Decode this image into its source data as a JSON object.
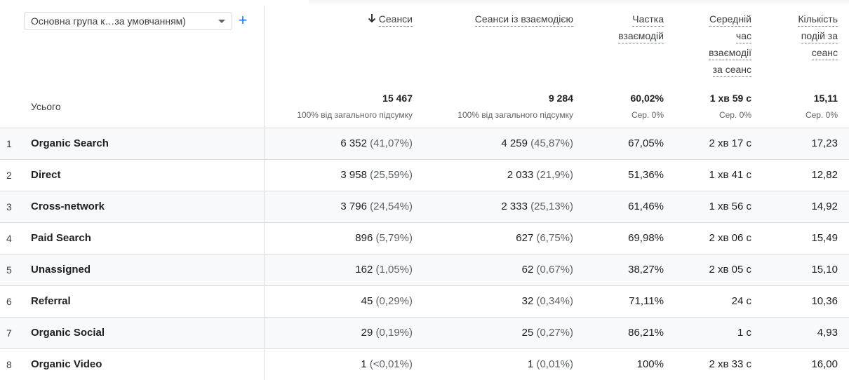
{
  "dimension_selector": {
    "label": "Основна група к…за умовчанням)"
  },
  "add_dimension": {
    "label": "+"
  },
  "totals_label": "Усього",
  "columns": [
    {
      "label_lines": [
        "Сеанси"
      ],
      "sorted": true,
      "total": "15 467",
      "total_sub": "100% від загального підсумку"
    },
    {
      "label_lines": [
        "Сеанси із взаємодією"
      ],
      "total": "9 284",
      "total_sub": "100% від загального підсумку"
    },
    {
      "label_lines": [
        "Частка",
        "взаємодій"
      ],
      "total": "60,02%",
      "total_sub": "Сер. 0%"
    },
    {
      "label_lines": [
        "Середній",
        "час",
        "взаємодії",
        "за сеанс"
      ],
      "total": "1 хв 59 с",
      "total_sub": "Сер. 0%"
    },
    {
      "label_lines": [
        "Кількість",
        "подій за",
        "сеанс"
      ],
      "total": "15,11",
      "total_sub": "Сер. 0%"
    }
  ],
  "rows": [
    {
      "index": "1",
      "channel": "Organic Search",
      "sessions": "6 352",
      "sessions_pct": "(41,07%)",
      "engaged": "4 259",
      "engaged_pct": "(45,87%)",
      "engagement_rate": "67,05%",
      "avg_time": "2 хв 17 с",
      "events_per_session": "17,23"
    },
    {
      "index": "2",
      "channel": "Direct",
      "sessions": "3 958",
      "sessions_pct": "(25,59%)",
      "engaged": "2 033",
      "engaged_pct": "(21,9%)",
      "engagement_rate": "51,36%",
      "avg_time": "1 хв 41 с",
      "events_per_session": "12,82"
    },
    {
      "index": "3",
      "channel": "Cross-network",
      "sessions": "3 796",
      "sessions_pct": "(24,54%)",
      "engaged": "2 333",
      "engaged_pct": "(25,13%)",
      "engagement_rate": "61,46%",
      "avg_time": "1 хв 56 с",
      "events_per_session": "14,92"
    },
    {
      "index": "4",
      "channel": "Paid Search",
      "sessions": "896",
      "sessions_pct": "(5,79%)",
      "engaged": "627",
      "engaged_pct": "(6,75%)",
      "engagement_rate": "69,98%",
      "avg_time": "2 хв 06 с",
      "events_per_session": "15,49"
    },
    {
      "index": "5",
      "channel": "Unassigned",
      "sessions": "162",
      "sessions_pct": "(1,05%)",
      "engaged": "62",
      "engaged_pct": "(0,67%)",
      "engagement_rate": "38,27%",
      "avg_time": "2 хв 05 с",
      "events_per_session": "15,10"
    },
    {
      "index": "6",
      "channel": "Referral",
      "sessions": "45",
      "sessions_pct": "(0,29%)",
      "engaged": "32",
      "engaged_pct": "(0,34%)",
      "engagement_rate": "71,11%",
      "avg_time": "24 с",
      "events_per_session": "10,36"
    },
    {
      "index": "7",
      "channel": "Organic Social",
      "sessions": "29",
      "sessions_pct": "(0,19%)",
      "engaged": "25",
      "engaged_pct": "(0,27%)",
      "engagement_rate": "86,21%",
      "avg_time": "1 с",
      "events_per_session": "4,93"
    },
    {
      "index": "8",
      "channel": "Organic Video",
      "sessions": "1",
      "sessions_pct": "(<0,01%)",
      "engaged": "1",
      "engaged_pct": "(0,01%)",
      "engagement_rate": "100%",
      "avg_time": "2 хв 33 с",
      "events_per_session": "16,00"
    }
  ],
  "colors": {
    "accent": "#1a73e8",
    "border": "#dadce0",
    "alt_row": "#f8f9fa",
    "muted_text": "#5f6368"
  }
}
